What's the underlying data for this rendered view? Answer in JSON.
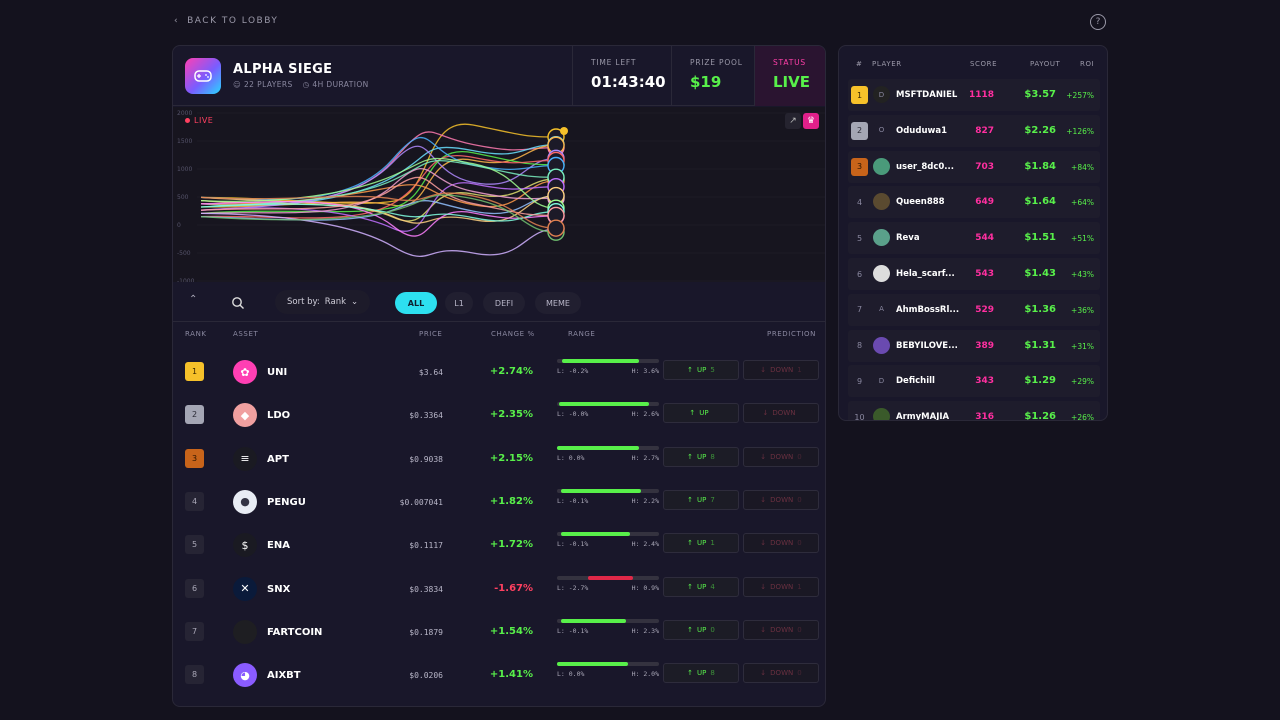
{
  "nav": {
    "back_label": "BACK TO LOBBY",
    "help_icon": "question-circle-icon"
  },
  "game": {
    "title": "ALPHA SIEGE",
    "players": "22 PLAYERS",
    "duration": "4H DURATION",
    "time_left_label": "TIME LEFT",
    "time_left": "01:43:40",
    "prize_label": "PRIZE POOL",
    "prize": "$19",
    "status_label": "STATUS",
    "status": "LIVE"
  },
  "chart": {
    "live_label": "LIVE",
    "y_ticks": [
      "2000",
      "1500",
      "1000",
      "500",
      "0",
      "-500",
      "-1000"
    ]
  },
  "toolbar": {
    "sort_label": "Sort by:",
    "sort_value": "Rank",
    "filters": [
      "ALL",
      "L1",
      "DEFI",
      "MEME"
    ]
  },
  "table": {
    "headers": {
      "rank": "RANK",
      "asset": "ASSET",
      "price": "PRICE",
      "change": "CHANGE %",
      "range": "RANGE",
      "prediction": "PREDICTION"
    },
    "up_label": "UP",
    "down_label": "DOWN",
    "rows": [
      {
        "rank": "1",
        "name": "UNI",
        "price": "$3.64",
        "change": "+2.74%",
        "low": "L: -0.2%",
        "high": "H: 3.6%",
        "bar": [
          0.05,
          0.8
        ],
        "up_count": "5",
        "down_count": "1",
        "color": "#ff3fb3",
        "logo": "uni-logo-icon",
        "glyph": "✿"
      },
      {
        "rank": "2",
        "name": "LDO",
        "price": "$0.3364",
        "change": "+2.35%",
        "low": "L: -0.0%",
        "high": "H: 2.6%",
        "bar": [
          0.02,
          0.9
        ],
        "up_count": "",
        "down_count": "",
        "color": "#f0a0a0",
        "logo": "ldo-logo-icon",
        "glyph": "◆"
      },
      {
        "rank": "3",
        "name": "APT",
        "price": "$0.9038",
        "change": "+2.15%",
        "low": "L: 0.0%",
        "high": "H: 2.7%",
        "bar": [
          0.0,
          0.8
        ],
        "up_count": "8",
        "down_count": "0",
        "color": "#1a1a22",
        "logo": "apt-logo-icon",
        "glyph": "≡"
      },
      {
        "rank": "4",
        "name": "PENGU",
        "price": "$0.007041",
        "change": "+1.82%",
        "low": "L: -0.1%",
        "high": "H: 2.2%",
        "bar": [
          0.04,
          0.82
        ],
        "up_count": "7",
        "down_count": "0",
        "color": "#e8ecf4",
        "logo": "pengu-logo-icon",
        "glyph": "●"
      },
      {
        "rank": "5",
        "name": "ENA",
        "price": "$0.1117",
        "change": "+1.72%",
        "low": "L: -0.1%",
        "high": "H: 2.4%",
        "bar": [
          0.04,
          0.72
        ],
        "up_count": "1",
        "down_count": "0",
        "color": "#1a1a22",
        "logo": "ena-logo-icon",
        "glyph": "$"
      },
      {
        "rank": "6",
        "name": "SNX",
        "price": "$0.3834",
        "change": "-1.67%",
        "low": "L: -2.7%",
        "high": "H: 0.9%",
        "bar": [
          0.3,
          0.75
        ],
        "up_count": "4",
        "down_count": "1",
        "color": "#0a1a3a",
        "logo": "snx-logo-icon",
        "glyph": "✕"
      },
      {
        "rank": "7",
        "name": "FARTCOIN",
        "price": "$0.1879",
        "change": "+1.54%",
        "low": "L: -0.1%",
        "high": "H: 2.3%",
        "bar": [
          0.04,
          0.68
        ],
        "up_count": "0",
        "down_count": "0",
        "color": "#1e1e22",
        "logo": "fartcoin-logo-icon",
        "glyph": ""
      },
      {
        "rank": "8",
        "name": "AIXBT",
        "price": "$0.0206",
        "change": "+1.41%",
        "low": "L: 0.0%",
        "high": "H: 2.0%",
        "bar": [
          0.0,
          0.7
        ],
        "up_count": "8",
        "down_count": "0",
        "color": "#8a5cff",
        "logo": "aixbt-logo-icon",
        "glyph": "◕"
      }
    ]
  },
  "leaderboard": {
    "headers": {
      "rank": "#",
      "player": "PLAYER",
      "score": "SCORE",
      "payout": "PAYOUT",
      "roi": "ROI"
    },
    "rows": [
      {
        "rank": "1",
        "name": "MSFTDANIEL",
        "score": "1118",
        "payout": "$3.57",
        "roi": "+257%",
        "avatar": "D",
        "color": "#222"
      },
      {
        "rank": "2",
        "name": "Oduduwa1",
        "score": "827",
        "payout": "$2.26",
        "roi": "+126%",
        "avatar": "O",
        "color": "#1e1c2c"
      },
      {
        "rank": "3",
        "name": "user_8dc0...",
        "score": "703",
        "payout": "$1.84",
        "roi": "+84%",
        "avatar": "",
        "color": "#4a9a7a"
      },
      {
        "rank": "4",
        "name": "Queen888",
        "score": "649",
        "payout": "$1.64",
        "roi": "+64%",
        "avatar": "",
        "color": "#5a4a30"
      },
      {
        "rank": "5",
        "name": "Reva",
        "score": "544",
        "payout": "$1.51",
        "roi": "+51%",
        "avatar": "",
        "color": "#5aa08a"
      },
      {
        "rank": "6",
        "name": "Hela_scarf...",
        "score": "543",
        "payout": "$1.43",
        "roi": "+43%",
        "avatar": "",
        "color": "#ddd"
      },
      {
        "rank": "7",
        "name": "AhmBossRl...",
        "score": "529",
        "payout": "$1.36",
        "roi": "+36%",
        "avatar": "A",
        "color": "#1e1c2c"
      },
      {
        "rank": "8",
        "name": "BEBYILOVE...",
        "score": "389",
        "payout": "$1.31",
        "roi": "+31%",
        "avatar": "",
        "color": "#6a4ab0"
      },
      {
        "rank": "9",
        "name": "Defichill",
        "score": "343",
        "payout": "$1.29",
        "roi": "+29%",
        "avatar": "D",
        "color": "#1e1c2c"
      },
      {
        "rank": "10",
        "name": "ArmyMAJIA",
        "score": "316",
        "payout": "$1.26",
        "roi": "+26%",
        "avatar": "",
        "color": "#3a5a2a"
      }
    ]
  }
}
